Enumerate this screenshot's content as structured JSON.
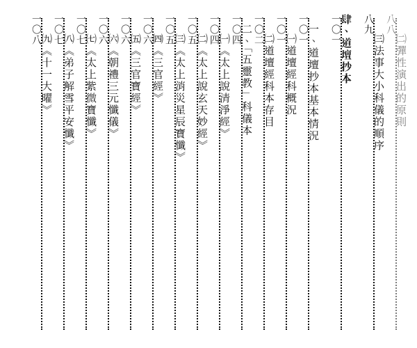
{
  "entries": [
    {
      "title": "㈡彈性演出的原則",
      "page": "八八",
      "indent": 2,
      "partial": true
    },
    {
      "title": "㈢法事大小科儀的順序",
      "page": "八九",
      "indent": 2
    },
    {
      "gap": true
    },
    {
      "title": "肆、道壇抄本",
      "page": "一〇一",
      "indent": 0
    },
    {
      "gap": true
    },
    {
      "title": "一、道壇抄本基本情況",
      "page": "一〇一",
      "indent": 1
    },
    {
      "title": "㈠道壇經科概況",
      "page": "一〇一",
      "indent": 2
    },
    {
      "title": "㈡道壇經科本存目",
      "page": "一〇二",
      "indent": 2
    },
    {
      "title": "二、「五靈教」科儀本",
      "page": "一〇四",
      "indent": 1
    },
    {
      "title": "㈠《太上說清淨經》",
      "page": "一〇四",
      "indent": 2
    },
    {
      "title": "㈡《太上說玄天妙經》",
      "page": "一〇五",
      "indent": 2
    },
    {
      "title": "㈢《太上消災星辰寶懺》",
      "page": "一〇五",
      "indent": 2
    },
    {
      "title": "㈣《三官經》",
      "page": "一〇六",
      "indent": 2
    },
    {
      "title": "㈤《三官寶經》",
      "page": "一〇六",
      "indent": 2
    },
    {
      "title": "㈥《朝禮三元懺儀》",
      "page": "一〇六",
      "indent": 2
    },
    {
      "title": "㈦《太上紫微寶懺》",
      "page": "一〇七",
      "indent": 2
    },
    {
      "title": "㈧《弟子解雪平安懺》",
      "page": "一〇七",
      "indent": 2
    },
    {
      "title": "㈨《十一大曜》",
      "page": "一〇八",
      "indent": 2
    }
  ]
}
